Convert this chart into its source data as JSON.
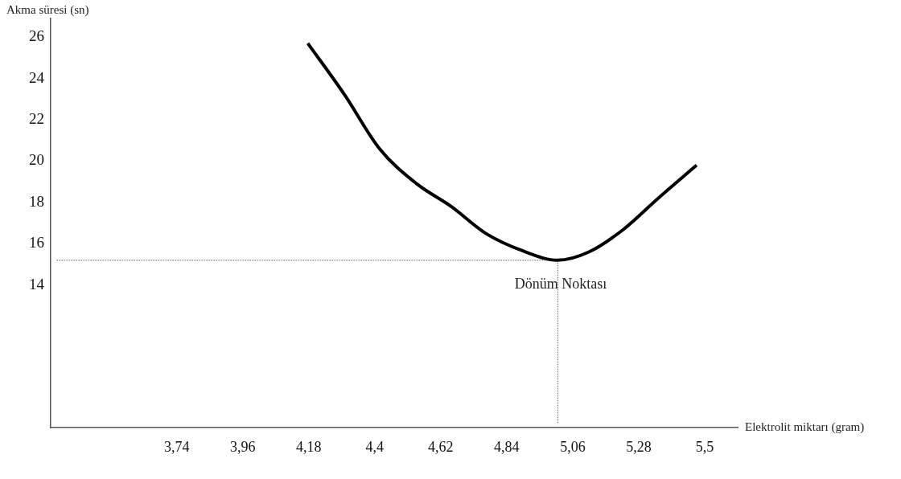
{
  "chart_data": {
    "type": "line",
    "xlabel": "Elektrolit miktarı (gram)",
    "ylabel": "Akma süresi (sn)",
    "xlim": [
      3.32,
      5.61
    ],
    "ylim": [
      7.1,
      26.9
    ],
    "xticks": [
      {
        "value": 3.74,
        "label": "3,74"
      },
      {
        "value": 3.96,
        "label": "3,96"
      },
      {
        "value": 4.18,
        "label": "4,18"
      },
      {
        "value": 4.4,
        "label": "4,4"
      },
      {
        "value": 4.62,
        "label": "4,62"
      },
      {
        "value": 4.84,
        "label": "4,84"
      },
      {
        "value": 5.06,
        "label": "5,06"
      },
      {
        "value": 5.28,
        "label": "5,28"
      },
      {
        "value": 5.5,
        "label": "5,5"
      }
    ],
    "yticks": [
      14,
      16,
      18,
      20,
      22,
      24,
      26
    ],
    "marker": "none",
    "annotations": [
      {
        "text": "Dönüm Noktası",
        "x": 5.02,
        "y": 14.0
      }
    ],
    "series": [
      {
        "color": "#000000",
        "line_style": "solid",
        "x": [
          4.177,
          4.3,
          4.416,
          4.54,
          4.655,
          4.77,
          4.894,
          5.009,
          5.114,
          5.23,
          5.345,
          5.473
        ],
        "values": [
          25.7,
          23.2,
          20.6,
          18.9,
          17.8,
          16.5,
          15.65,
          15.2,
          15.6,
          16.7,
          18.2,
          19.8
        ]
      },
      {
        "color": "#555555",
        "line_style": "dotted",
        "x": [
          3.34,
          5.01
        ],
        "values": [
          15.2,
          15.2
        ]
      },
      {
        "color": "#555555",
        "line_style": "dotted",
        "x": [
          5.01,
          5.01
        ],
        "values": [
          15.2,
          7.3
        ]
      }
    ]
  }
}
